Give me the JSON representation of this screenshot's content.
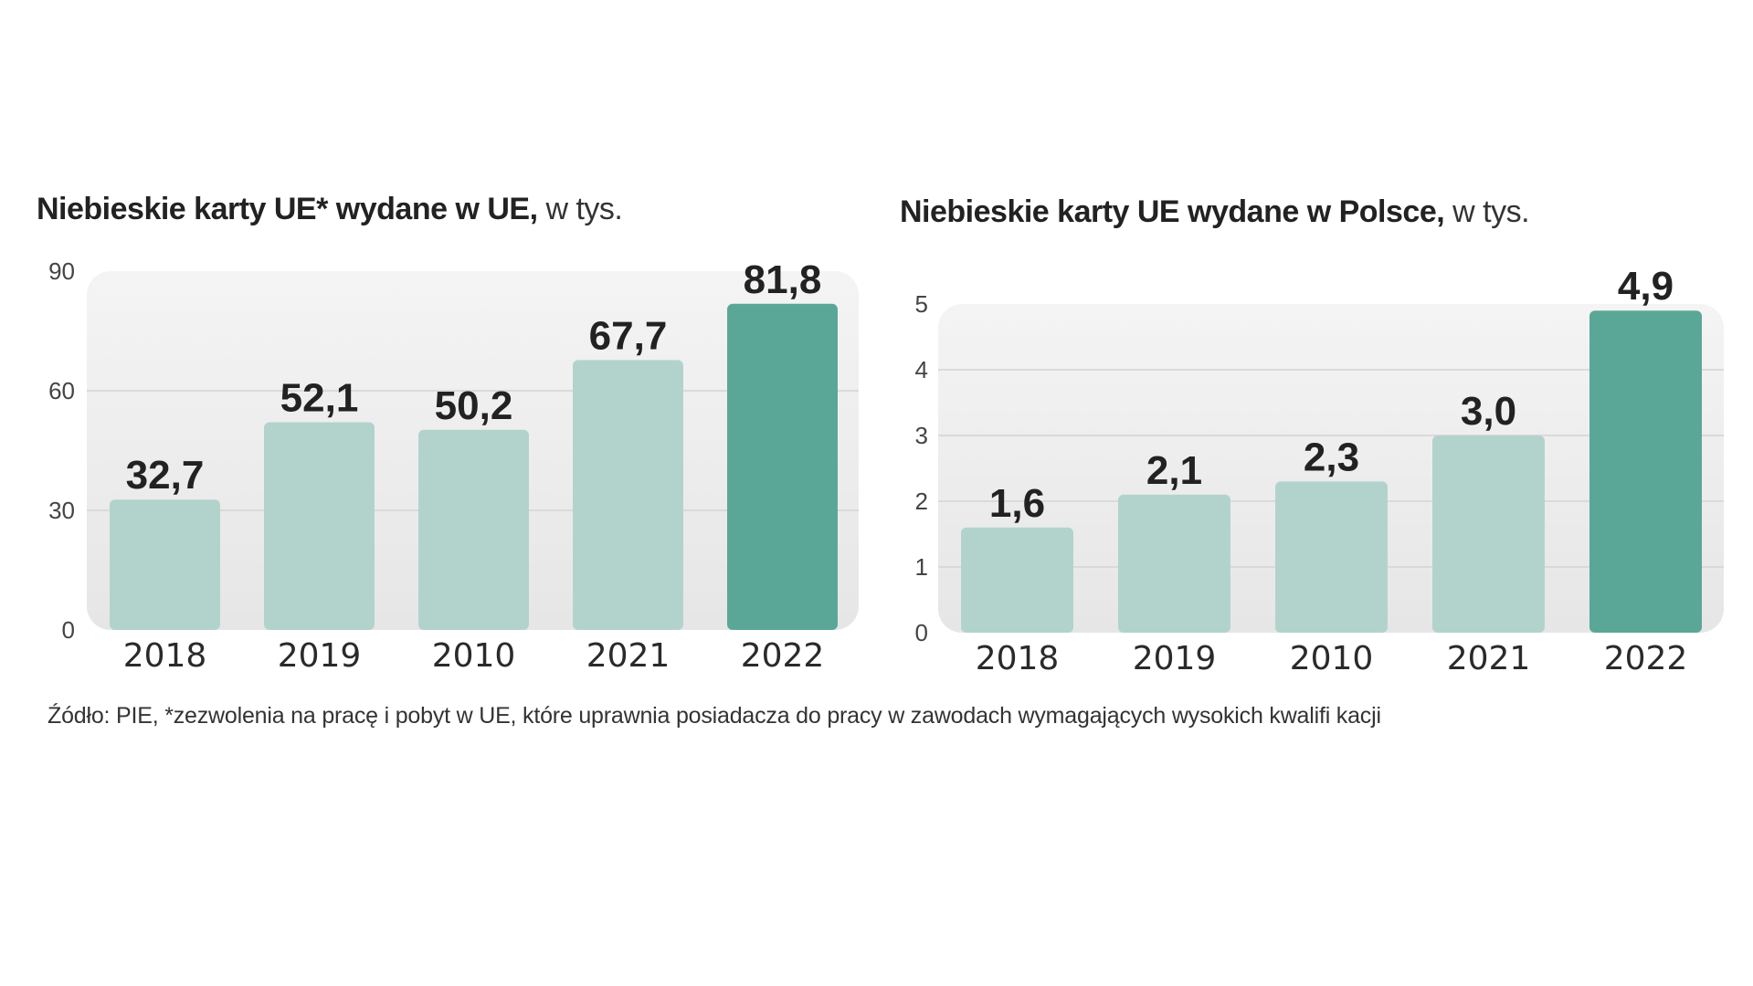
{
  "colors": {
    "bar_light": "#b2d3cc",
    "bar_dark": "#5ba797",
    "panel": "#ececec",
    "grid": "#d4d4d4"
  },
  "source_note": "Źódło: PIE, *zezwolenia na pracę i pobyt w UE, które uprawnia posiadacza do pracy w zawodach wymagających wysokich kwalifi kacji",
  "chart_data": [
    {
      "type": "bar",
      "title_bold": "Niebieskie karty UE* wydane w UE,",
      "title_unit": " w tys.",
      "categories": [
        "2018",
        "2019",
        "2010",
        "2021",
        "2022"
      ],
      "values": [
        32.7,
        52.1,
        50.2,
        67.7,
        81.8
      ],
      "value_labels": [
        "32,7",
        "52,1",
        "50,2",
        "67,7",
        "81,8"
      ],
      "highlight_index": 4,
      "yticks": [
        0,
        30,
        60,
        90
      ],
      "ylim": [
        0,
        90
      ],
      "grid": true
    },
    {
      "type": "bar",
      "title_bold": "Niebieskie karty UE wydane w Polsce,",
      "title_unit": " w tys.",
      "categories": [
        "2018",
        "2019",
        "2010",
        "2021",
        "2022"
      ],
      "values": [
        1.6,
        2.1,
        2.3,
        3.0,
        4.9
      ],
      "value_labels": [
        "1,6",
        "2,1",
        "2,3",
        "3,0",
        "4,9"
      ],
      "highlight_index": 4,
      "yticks": [
        0,
        1,
        2,
        3,
        4,
        5
      ],
      "ylim": [
        0,
        5
      ],
      "grid": true
    }
  ]
}
